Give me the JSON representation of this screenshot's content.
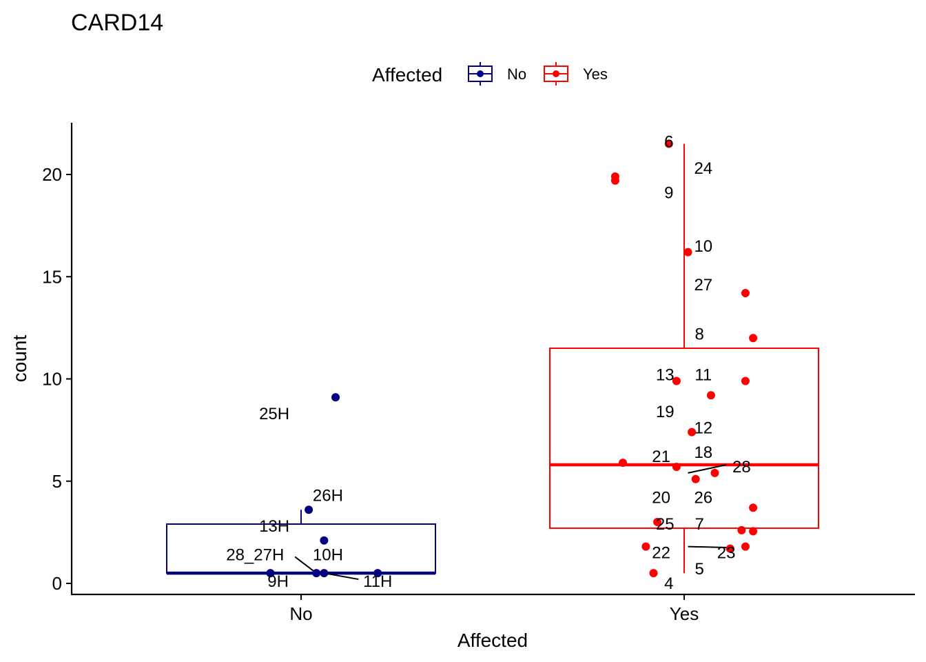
{
  "chart_data": {
    "type": "box",
    "title": "CARD14",
    "xlabel": "Affected",
    "ylabel": "count",
    "categories": [
      "No",
      "Yes"
    ],
    "ylim": [
      -0.6,
      22.5
    ],
    "yticks": [
      0,
      5,
      10,
      15,
      20
    ],
    "legend": {
      "title": "Affected",
      "position": "top",
      "entries": [
        {
          "label": "No",
          "color": "#000080"
        },
        {
          "label": "Yes",
          "color": "#ff0000"
        }
      ]
    },
    "series": [
      {
        "name": "No",
        "color": "#000080",
        "box": {
          "lower": 0.5,
          "q1": 0.5,
          "median": 0.5,
          "q3": 2.9,
          "upper": 3.6
        },
        "points": [
          {
            "x": 0.09,
            "y": 9.1
          },
          {
            "x": 0.02,
            "y": 3.6
          },
          {
            "x": 0.06,
            "y": 2.1
          },
          {
            "x": -0.08,
            "y": 0.5
          },
          {
            "x": 0.04,
            "y": 0.5
          },
          {
            "x": 0.06,
            "y": 0.5
          },
          {
            "x": 0.2,
            "y": 0.5
          }
        ],
        "labels": [
          {
            "text": "25H",
            "x": -0.07,
            "y": 8.3
          },
          {
            "text": "26H",
            "x": 0.07,
            "y": 4.3
          },
          {
            "text": "13H",
            "x": -0.07,
            "y": 2.8
          },
          {
            "text": "28_27H",
            "x": -0.12,
            "y": 1.4
          },
          {
            "text": "10H",
            "x": 0.07,
            "y": 1.4
          },
          {
            "text": "9H",
            "x": -0.06,
            "y": 0.1
          },
          {
            "text": "11H",
            "x": 0.2,
            "y": 0.1
          }
        ]
      },
      {
        "name": "Yes",
        "color": "#ff0000",
        "box": {
          "lower": 0.5,
          "q1": 2.7,
          "median": 5.8,
          "q3": 11.5,
          "upper": 21.5
        },
        "points": [
          {
            "x": -0.04,
            "y": 21.5
          },
          {
            "x": -0.18,
            "y": 19.9
          },
          {
            "x": -0.18,
            "y": 19.7
          },
          {
            "x": 0.01,
            "y": 16.2
          },
          {
            "x": 0.16,
            "y": 14.2
          },
          {
            "x": 0.18,
            "y": 12.0
          },
          {
            "x": -0.02,
            "y": 9.9
          },
          {
            "x": 0.16,
            "y": 9.9
          },
          {
            "x": 0.07,
            "y": 9.2
          },
          {
            "x": 0.02,
            "y": 7.4
          },
          {
            "x": -0.16,
            "y": 5.9
          },
          {
            "x": -0.02,
            "y": 5.7
          },
          {
            "x": 0.08,
            "y": 5.4
          },
          {
            "x": 0.03,
            "y": 5.1
          },
          {
            "x": 0.18,
            "y": 3.7
          },
          {
            "x": -0.07,
            "y": 3.0
          },
          {
            "x": 0.15,
            "y": 2.6
          },
          {
            "x": 0.18,
            "y": 2.55
          },
          {
            "x": -0.1,
            "y": 1.8
          },
          {
            "x": 0.16,
            "y": 1.8
          },
          {
            "x": 0.12,
            "y": 1.7
          },
          {
            "x": -0.08,
            "y": 0.5
          }
        ],
        "labels": [
          {
            "text": "6",
            "x": -0.04,
            "y": 21.6
          },
          {
            "text": "24",
            "x": 0.05,
            "y": 20.3
          },
          {
            "text": "9",
            "x": -0.04,
            "y": 19.1
          },
          {
            "text": "10",
            "x": 0.05,
            "y": 16.5
          },
          {
            "text": "27",
            "x": 0.05,
            "y": 14.6
          },
          {
            "text": "8",
            "x": 0.04,
            "y": 12.2
          },
          {
            "text": "13",
            "x": -0.05,
            "y": 10.2
          },
          {
            "text": "11",
            "x": 0.05,
            "y": 10.2
          },
          {
            "text": "19",
            "x": -0.05,
            "y": 8.4
          },
          {
            "text": "12",
            "x": 0.05,
            "y": 7.6
          },
          {
            "text": "21",
            "x": -0.06,
            "y": 6.2
          },
          {
            "text": "18",
            "x": 0.05,
            "y": 6.4
          },
          {
            "text": "28",
            "x": 0.15,
            "y": 5.7
          },
          {
            "text": "20",
            "x": -0.06,
            "y": 4.2
          },
          {
            "text": "26",
            "x": 0.05,
            "y": 4.2
          },
          {
            "text": "25",
            "x": -0.05,
            "y": 2.9
          },
          {
            "text": "7",
            "x": 0.04,
            "y": 2.9
          },
          {
            "text": "22",
            "x": -0.06,
            "y": 1.5
          },
          {
            "text": "23",
            "x": 0.11,
            "y": 1.5
          },
          {
            "text": "5",
            "x": 0.04,
            "y": 0.7
          },
          {
            "text": "4",
            "x": -0.04,
            "y": 0.0
          }
        ],
        "connectors": [
          {
            "x1": 0.01,
            "y1": 5.4,
            "x2": 0.11,
            "y2": 5.8
          },
          {
            "x1": 0.01,
            "y1": 1.8,
            "x2": 0.12,
            "y2": 1.75
          }
        ]
      }
    ],
    "no_connectors": [
      {
        "x1": -0.016,
        "y1": 1.3,
        "x2": 0.04,
        "y2": 0.5
      },
      {
        "x1": 0.06,
        "y1": 0.5,
        "x2": 0.15,
        "y2": 0.2
      }
    ]
  }
}
